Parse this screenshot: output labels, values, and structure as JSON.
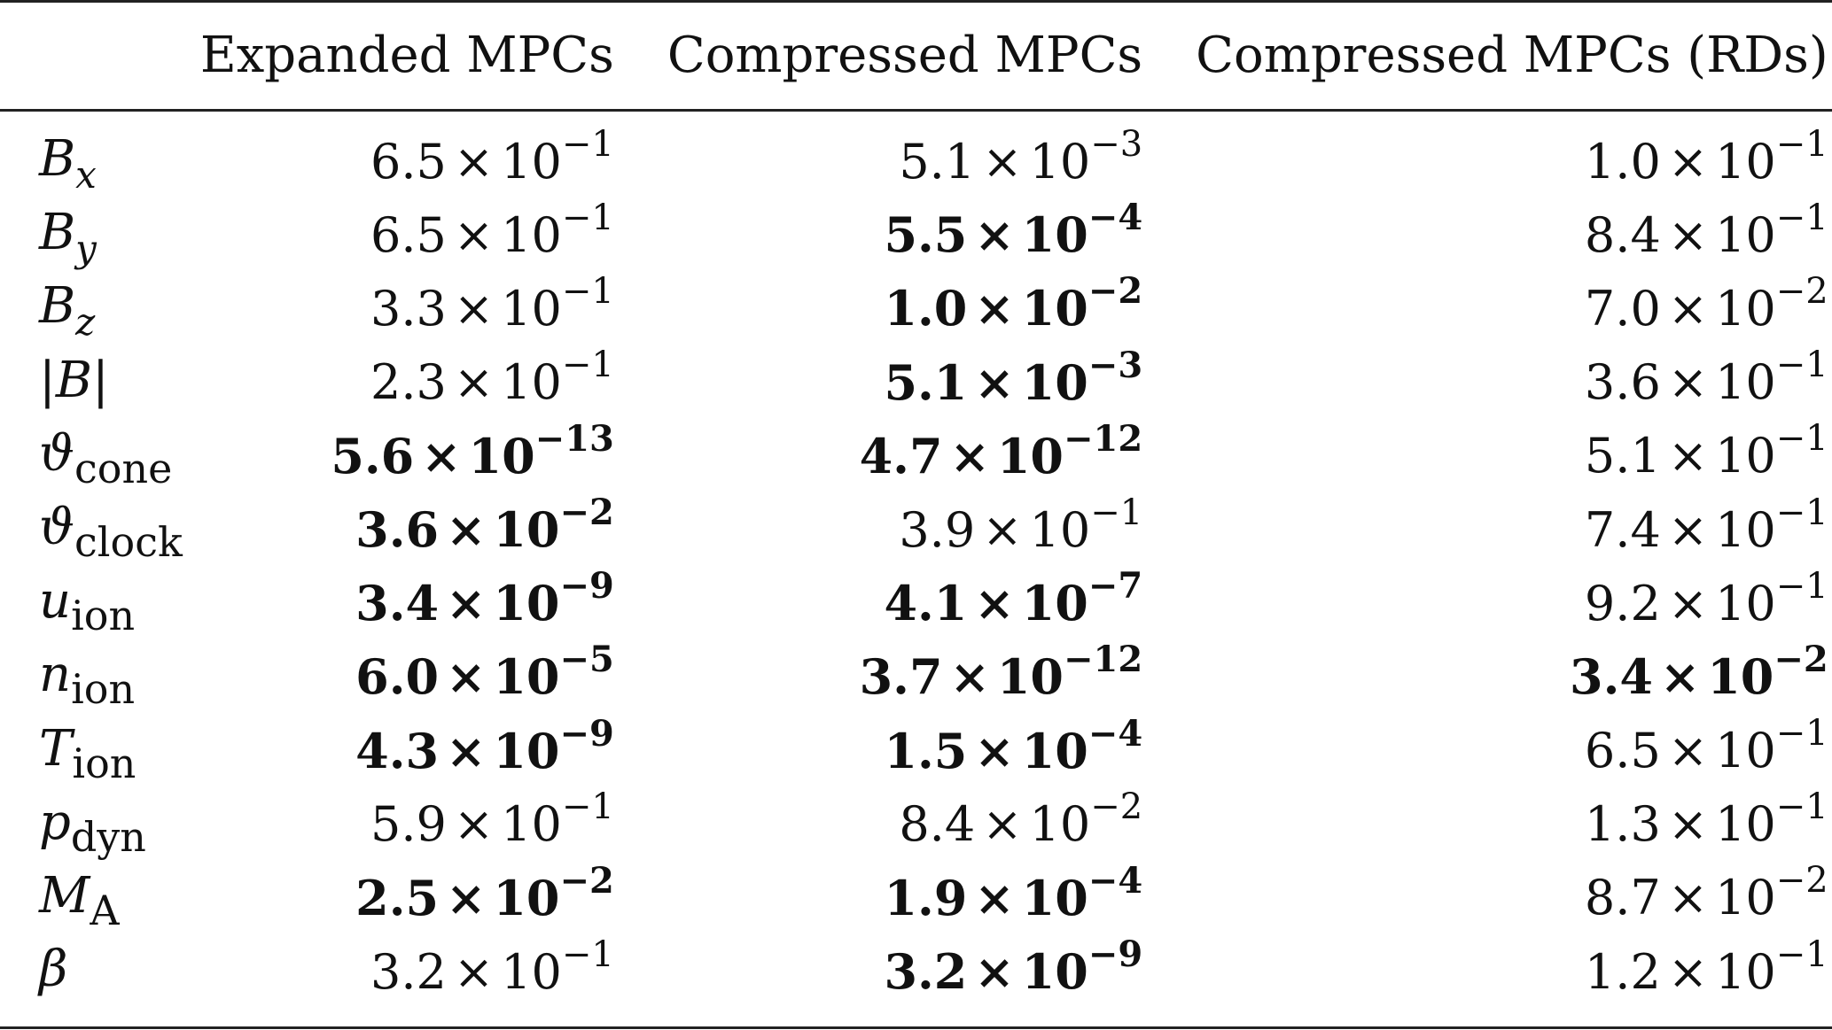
{
  "headers": [
    "",
    "Expanded MPCs",
    "Compressed MPCs",
    "Compressed MPCs (RDs)"
  ],
  "rows": [
    {
      "label": "B",
      "sub": "x",
      "sub_italic": true,
      "values": [
        {
          "mantissa": "6.5",
          "exponent": "−1",
          "bold": false
        },
        {
          "mantissa": "5.1",
          "exponent": "−3",
          "bold": false
        },
        {
          "mantissa": "1.0",
          "exponent": "−1",
          "bold": false
        }
      ]
    },
    {
      "label": "B",
      "sub": "y",
      "sub_italic": true,
      "values": [
        {
          "mantissa": "6.5",
          "exponent": "−1",
          "bold": false
        },
        {
          "mantissa": "5.5",
          "exponent": "−4",
          "bold": true
        },
        {
          "mantissa": "8.4",
          "exponent": "−1",
          "bold": false
        }
      ]
    },
    {
      "label": "B",
      "sub": "z",
      "sub_italic": true,
      "values": [
        {
          "mantissa": "3.3",
          "exponent": "−1",
          "bold": false
        },
        {
          "mantissa": "1.0",
          "exponent": "−2",
          "bold": true
        },
        {
          "mantissa": "7.0",
          "exponent": "−2",
          "bold": false
        }
      ]
    },
    {
      "label": "|B|",
      "sub": "",
      "sub_italic": false,
      "values": [
        {
          "mantissa": "2.3",
          "exponent": "−1",
          "bold": false
        },
        {
          "mantissa": "5.1",
          "exponent": "−3",
          "bold": true
        },
        {
          "mantissa": "3.6",
          "exponent": "−1",
          "bold": false
        }
      ]
    },
    {
      "label": "ϑ",
      "sub": "cone",
      "sub_italic": false,
      "values": [
        {
          "mantissa": "5.6",
          "exponent": "−13",
          "bold": true
        },
        {
          "mantissa": "4.7",
          "exponent": "−12",
          "bold": true
        },
        {
          "mantissa": "5.1",
          "exponent": "−1",
          "bold": false
        }
      ]
    },
    {
      "label": "ϑ",
      "sub": "clock",
      "sub_italic": false,
      "values": [
        {
          "mantissa": "3.6",
          "exponent": "−2",
          "bold": true
        },
        {
          "mantissa": "3.9",
          "exponent": "−1",
          "bold": false
        },
        {
          "mantissa": "7.4",
          "exponent": "−1",
          "bold": false
        }
      ]
    },
    {
      "label": "u",
      "sub": "ion",
      "sub_italic": false,
      "values": [
        {
          "mantissa": "3.4",
          "exponent": "−9",
          "bold": true
        },
        {
          "mantissa": "4.1",
          "exponent": "−7",
          "bold": true
        },
        {
          "mantissa": "9.2",
          "exponent": "−1",
          "bold": false
        }
      ]
    },
    {
      "label": "n",
      "sub": "ion",
      "sub_italic": false,
      "values": [
        {
          "mantissa": "6.0",
          "exponent": "−5",
          "bold": true
        },
        {
          "mantissa": "3.7",
          "exponent": "−12",
          "bold": true
        },
        {
          "mantissa": "3.4",
          "exponent": "−2",
          "bold": true
        }
      ]
    },
    {
      "label": "T",
      "sub": "ion",
      "sub_italic": false,
      "values": [
        {
          "mantissa": "4.3",
          "exponent": "−9",
          "bold": true
        },
        {
          "mantissa": "1.5",
          "exponent": "−4",
          "bold": true
        },
        {
          "mantissa": "6.5",
          "exponent": "−1",
          "bold": false
        }
      ]
    },
    {
      "label": "p",
      "sub": "dyn",
      "sub_italic": false,
      "values": [
        {
          "mantissa": "5.9",
          "exponent": "−1",
          "bold": false
        },
        {
          "mantissa": "8.4",
          "exponent": "−2",
          "bold": false
        },
        {
          "mantissa": "1.3",
          "exponent": "−1",
          "bold": false
        }
      ]
    },
    {
      "label": "M",
      "sub": "A",
      "sub_italic": false,
      "values": [
        {
          "mantissa": "2.5",
          "exponent": "−2",
          "bold": true
        },
        {
          "mantissa": "1.9",
          "exponent": "−4",
          "bold": true
        },
        {
          "mantissa": "8.7",
          "exponent": "−2",
          "bold": false
        }
      ]
    },
    {
      "label": "β",
      "sub": "",
      "sub_italic": false,
      "values": [
        {
          "mantissa": "3.2",
          "exponent": "−1",
          "bold": false
        },
        {
          "mantissa": "3.2",
          "exponent": "−9",
          "bold": true
        },
        {
          "mantissa": "1.2",
          "exponent": "−1",
          "bold": false
        }
      ]
    }
  ],
  "times_symbol": "×",
  "base": "10"
}
